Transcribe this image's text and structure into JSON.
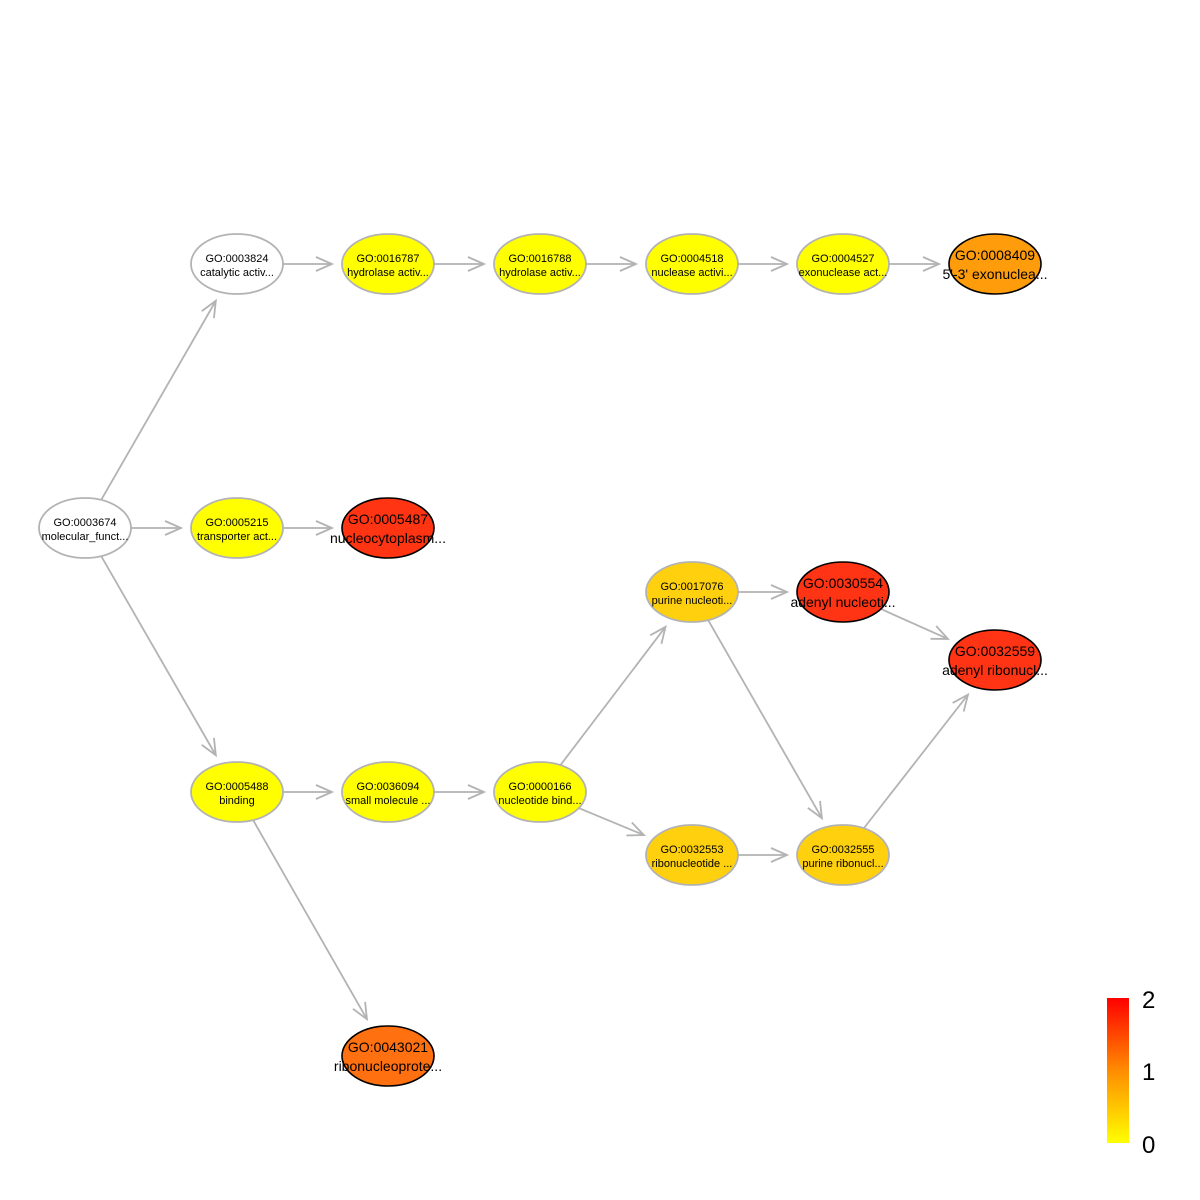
{
  "colors": {
    "edge": "#b3b3b3",
    "border_default": "#b3b3b3",
    "border_significant": "#000000",
    "scale_low": "#ffff00",
    "scale_mid": "#ff8c00",
    "scale_high": "#ff0000"
  },
  "nodes": [
    {
      "id": "GO:0003674",
      "label": "molecular_funct...",
      "fill": "#ffffff",
      "significant": false
    },
    {
      "id": "GO:0003824",
      "label": "catalytic activ...",
      "fill": "#ffffff",
      "significant": false
    },
    {
      "id": "GO:0016787",
      "label": "hydrolase activ...",
      "fill": "#ffff00",
      "significant": false
    },
    {
      "id": "GO:0016788",
      "label": "hydrolase activ...",
      "fill": "#ffff00",
      "significant": false
    },
    {
      "id": "GO:0004518",
      "label": "nuclease activi...",
      "fill": "#ffff00",
      "significant": false
    },
    {
      "id": "GO:0004527",
      "label": "exonuclease act...",
      "fill": "#ffff00",
      "significant": false
    },
    {
      "id": "GO:0008409",
      "label": "5'-3' exonuclea...",
      "fill": "#ff9c0c",
      "significant": true
    },
    {
      "id": "GO:0005215",
      "label": "transporter act...",
      "fill": "#ffff00",
      "significant": false
    },
    {
      "id": "GO:0005487",
      "label": "nucleocytoplasm...",
      "fill": "#ff3412",
      "significant": true
    },
    {
      "id": "GO:0005488",
      "label": "binding",
      "fill": "#ffff00",
      "significant": false
    },
    {
      "id": "GO:0036094",
      "label": "small molecule ...",
      "fill": "#ffff00",
      "significant": false
    },
    {
      "id": "GO:0000166",
      "label": "nucleotide bind...",
      "fill": "#ffff00",
      "significant": false
    },
    {
      "id": "GO:0017076",
      "label": "purine nucleoti...",
      "fill": "#ffd00d",
      "significant": false
    },
    {
      "id": "GO:0030554",
      "label": "adenyl nucleoti...",
      "fill": "#ff3414",
      "significant": true
    },
    {
      "id": "GO:0032559",
      "label": "adenyl ribonucl...",
      "fill": "#ff3414",
      "significant": true
    },
    {
      "id": "GO:0032553",
      "label": "ribonucleotide ...",
      "fill": "#ffd00d",
      "significant": false
    },
    {
      "id": "GO:0032555",
      "label": "purine ribonucl...",
      "fill": "#ffd00d",
      "significant": false
    },
    {
      "id": "GO:0043021",
      "label": "ribonucleoprote...",
      "fill": "#ff7010",
      "significant": true
    }
  ],
  "edges": [
    [
      "GO:0003674",
      "GO:0003824"
    ],
    [
      "GO:0003674",
      "GO:0005215"
    ],
    [
      "GO:0003674",
      "GO:0005488"
    ],
    [
      "GO:0003824",
      "GO:0016787"
    ],
    [
      "GO:0016787",
      "GO:0016788"
    ],
    [
      "GO:0016788",
      "GO:0004518"
    ],
    [
      "GO:0004518",
      "GO:0004527"
    ],
    [
      "GO:0004527",
      "GO:0008409"
    ],
    [
      "GO:0005215",
      "GO:0005487"
    ],
    [
      "GO:0005488",
      "GO:0036094"
    ],
    [
      "GO:0005488",
      "GO:0043021"
    ],
    [
      "GO:0036094",
      "GO:0000166"
    ],
    [
      "GO:0000166",
      "GO:0017076"
    ],
    [
      "GO:0000166",
      "GO:0032553"
    ],
    [
      "GO:0017076",
      "GO:0030554"
    ],
    [
      "GO:0017076",
      "GO:0032555"
    ],
    [
      "GO:0030554",
      "GO:0032559"
    ],
    [
      "GO:0032553",
      "GO:0032555"
    ],
    [
      "GO:0032555",
      "GO:0032559"
    ]
  ],
  "legend": {
    "ticks": [
      "2",
      "1",
      "0"
    ]
  }
}
